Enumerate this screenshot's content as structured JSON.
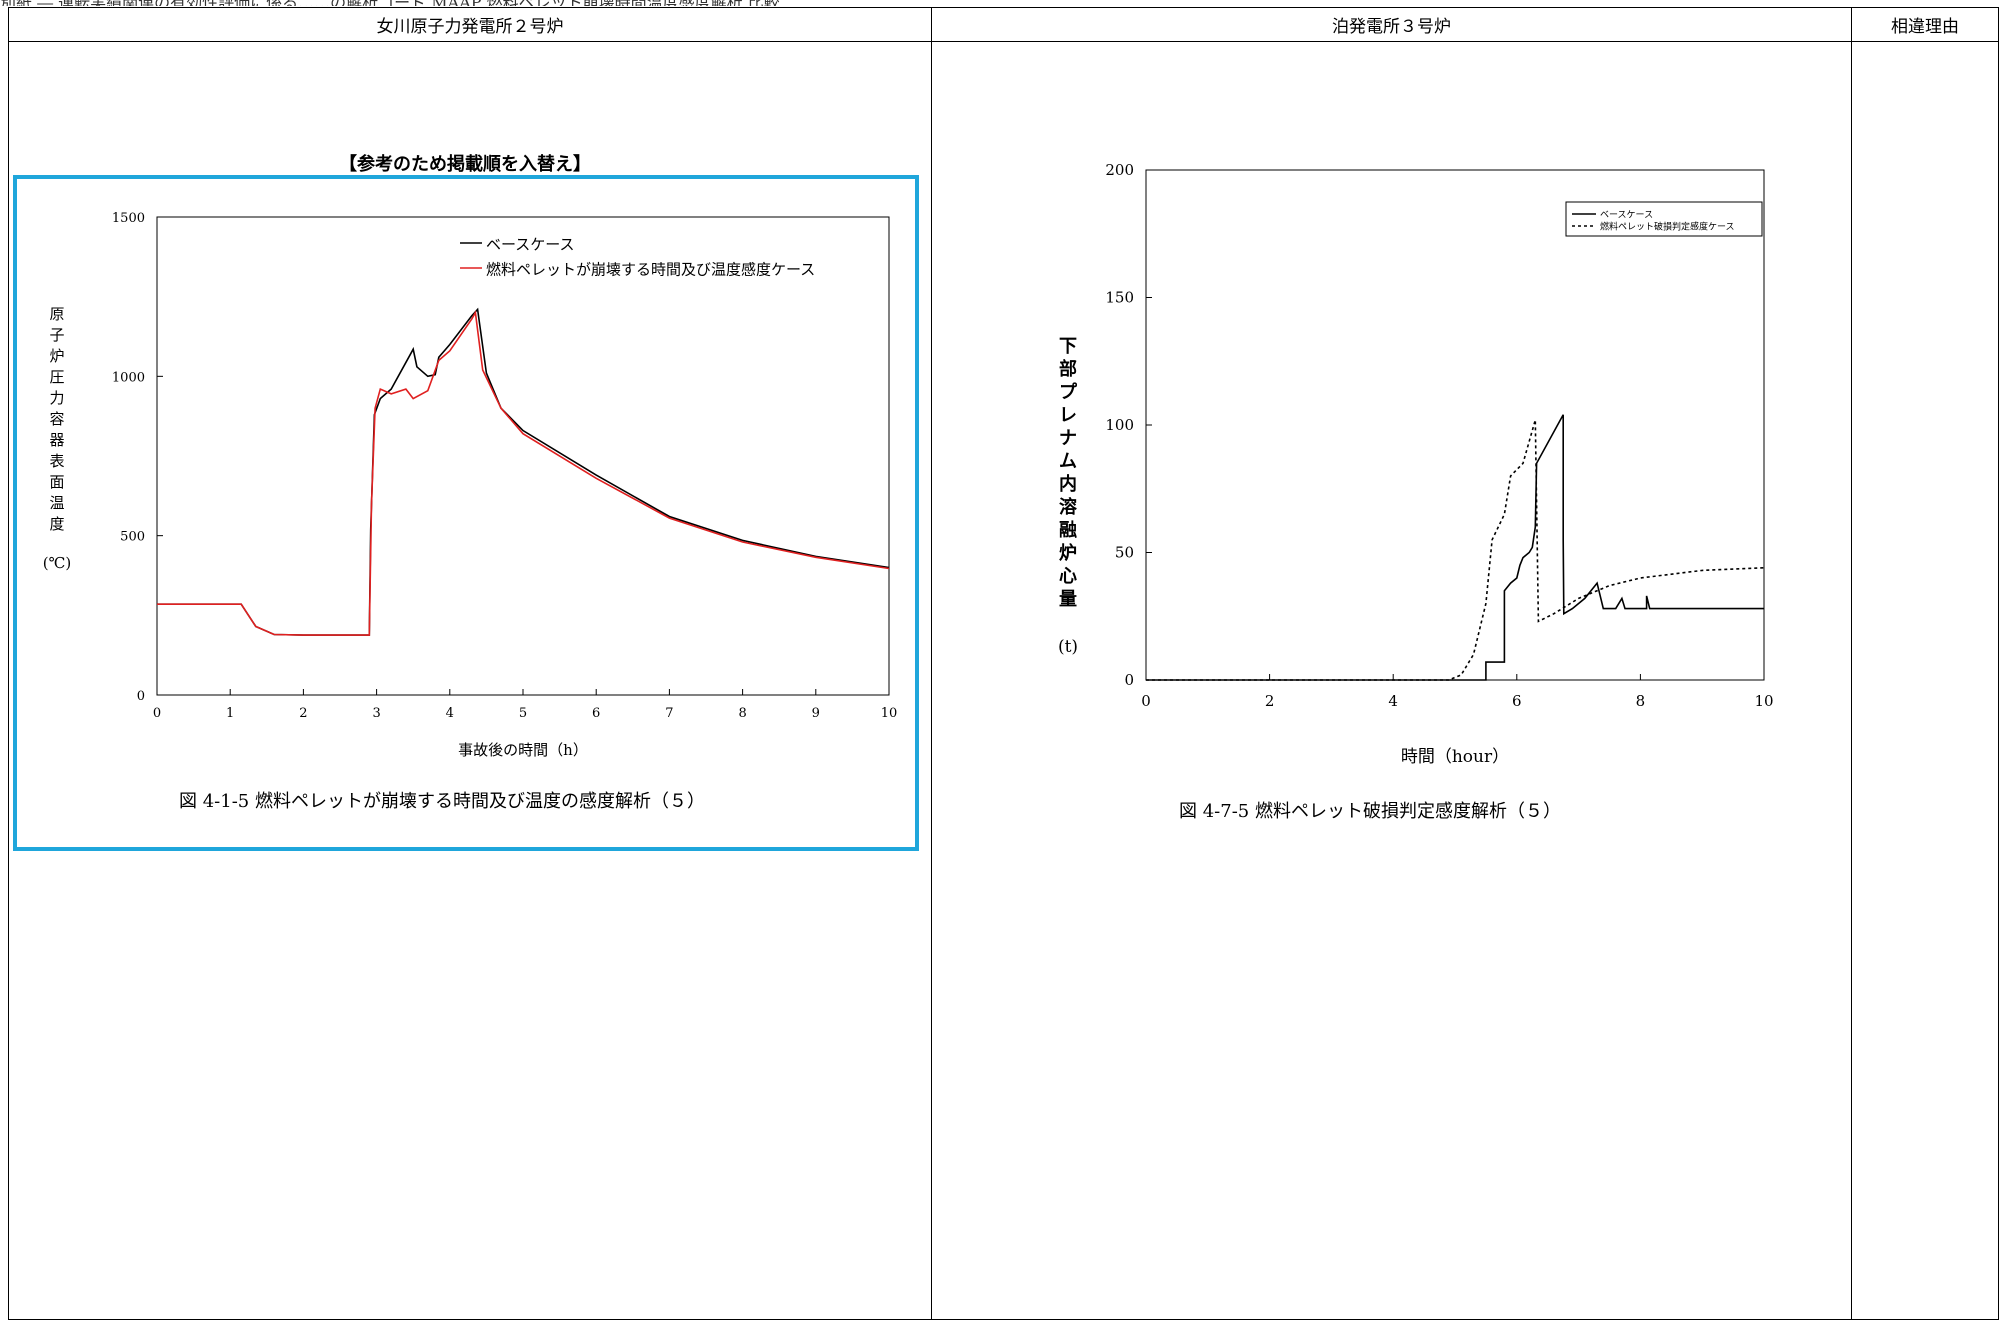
{
  "header_strip": "別紙 ― 運転実績関連の有効性評価に係る……の解析コード MAAP 燃料ペレット崩壊時間温度感度解析 比較",
  "table": {
    "col1_header": "女川原子力発電所２号炉",
    "col2_header": "泊発電所３号炉",
    "col3_header": "相違理由"
  },
  "left": {
    "note": "【参考のため掲載順を入替え】",
    "caption": "図 4-1-5 燃料ペレットが崩壊する時間及び温度の感度解析（５）"
  },
  "right": {
    "caption": "図 4-7-5 燃料ペレット破損判定感度解析（５）"
  },
  "chart_data": [
    {
      "type": "line",
      "xlabel": "事故後の時間（h）",
      "ylabel": "原子炉圧力容器表面温度",
      "yunit": "(℃)",
      "xlim": [
        0,
        10
      ],
      "ylim": [
        0,
        1500
      ],
      "xticks": [
        "0",
        "1",
        "2",
        "3",
        "4",
        "5",
        "6",
        "7",
        "8",
        "9",
        "10"
      ],
      "yticks": [
        "0",
        "500",
        "1000",
        "1500"
      ],
      "legend_position": "top-right",
      "grid": false,
      "series": [
        {
          "name": "ベースケース",
          "color": "#000000",
          "points": [
            [
              0,
              285
            ],
            [
              1.15,
              285
            ],
            [
              1.35,
              215
            ],
            [
              1.6,
              190
            ],
            [
              2.0,
              188
            ],
            [
              2.9,
              188
            ],
            [
              2.92,
              520
            ],
            [
              2.97,
              880
            ],
            [
              3.05,
              930
            ],
            [
              3.2,
              960
            ],
            [
              3.5,
              1085
            ],
            [
              3.55,
              1030
            ],
            [
              3.7,
              1000
            ],
            [
              3.8,
              1005
            ],
            [
              3.85,
              1060
            ],
            [
              4.0,
              1100
            ],
            [
              4.3,
              1190
            ],
            [
              4.38,
              1210
            ],
            [
              4.5,
              1010
            ],
            [
              4.7,
              900
            ],
            [
              5.0,
              830
            ],
            [
              6.0,
              690
            ],
            [
              7.0,
              560
            ],
            [
              8.0,
              485
            ],
            [
              9.0,
              435
            ],
            [
              10.0,
              400
            ]
          ]
        },
        {
          "name": "燃料ペレットが崩壊する時間及び温度感度ケース",
          "color": "#e02020",
          "points": [
            [
              0,
              285
            ],
            [
              1.15,
              285
            ],
            [
              1.35,
              215
            ],
            [
              1.6,
              190
            ],
            [
              2.0,
              188
            ],
            [
              2.9,
              188
            ],
            [
              2.93,
              600
            ],
            [
              2.98,
              900
            ],
            [
              3.05,
              960
            ],
            [
              3.2,
              945
            ],
            [
              3.4,
              960
            ],
            [
              3.5,
              930
            ],
            [
              3.7,
              955
            ],
            [
              3.85,
              1050
            ],
            [
              4.0,
              1080
            ],
            [
              4.3,
              1180
            ],
            [
              4.35,
              1200
            ],
            [
              4.45,
              1020
            ],
            [
              4.7,
              900
            ],
            [
              5.0,
              820
            ],
            [
              6.0,
              680
            ],
            [
              7.0,
              555
            ],
            [
              8.0,
              480
            ],
            [
              9.0,
              432
            ],
            [
              10.0,
              397
            ]
          ]
        }
      ]
    },
    {
      "type": "line",
      "xlabel": "時間（hour）",
      "ylabel": "下部プレナム内溶融炉心量",
      "yunit": "(t)",
      "xlim": [
        0,
        10
      ],
      "ylim": [
        0,
        200
      ],
      "xticks": [
        "0",
        "2",
        "4",
        "6",
        "8",
        "10"
      ],
      "yticks": [
        "0",
        "50",
        "100",
        "150",
        "200"
      ],
      "legend_position": "top-right",
      "grid": false,
      "series": [
        {
          "name": "ベースケース",
          "color": "#000000",
          "dash": "solid",
          "points": [
            [
              0,
              0
            ],
            [
              5.0,
              0
            ],
            [
              5.5,
              0
            ],
            [
              5.5,
              7
            ],
            [
              5.8,
              7
            ],
            [
              5.8,
              35
            ],
            [
              5.9,
              38
            ],
            [
              6.0,
              40
            ],
            [
              6.05,
              45
            ],
            [
              6.1,
              48
            ],
            [
              6.2,
              50
            ],
            [
              6.25,
              52
            ],
            [
              6.3,
              60
            ],
            [
              6.32,
              85
            ],
            [
              6.75,
              104
            ],
            [
              6.75,
              55
            ],
            [
              6.76,
              26
            ],
            [
              6.9,
              28
            ],
            [
              7.1,
              32
            ],
            [
              7.3,
              38
            ],
            [
              7.4,
              28
            ],
            [
              7.6,
              28
            ],
            [
              7.7,
              32
            ],
            [
              7.75,
              28
            ],
            [
              8.1,
              28
            ],
            [
              8.1,
              33
            ],
            [
              8.15,
              28
            ],
            [
              10.0,
              28
            ]
          ]
        },
        {
          "name": "燃料ペレット破損判定感度ケース",
          "color": "#000000",
          "dash": "dotted",
          "points": [
            [
              0,
              0
            ],
            [
              4.9,
              0
            ],
            [
              5.1,
              2
            ],
            [
              5.3,
              10
            ],
            [
              5.5,
              30
            ],
            [
              5.6,
              55
            ],
            [
              5.8,
              65
            ],
            [
              5.9,
              80
            ],
            [
              6.1,
              85
            ],
            [
              6.3,
              102
            ],
            [
              6.35,
              23
            ],
            [
              6.6,
              26
            ],
            [
              7.0,
              32
            ],
            [
              7.5,
              37
            ],
            [
              8.0,
              40
            ],
            [
              9.0,
              43
            ],
            [
              10.0,
              44
            ]
          ]
        }
      ]
    }
  ]
}
